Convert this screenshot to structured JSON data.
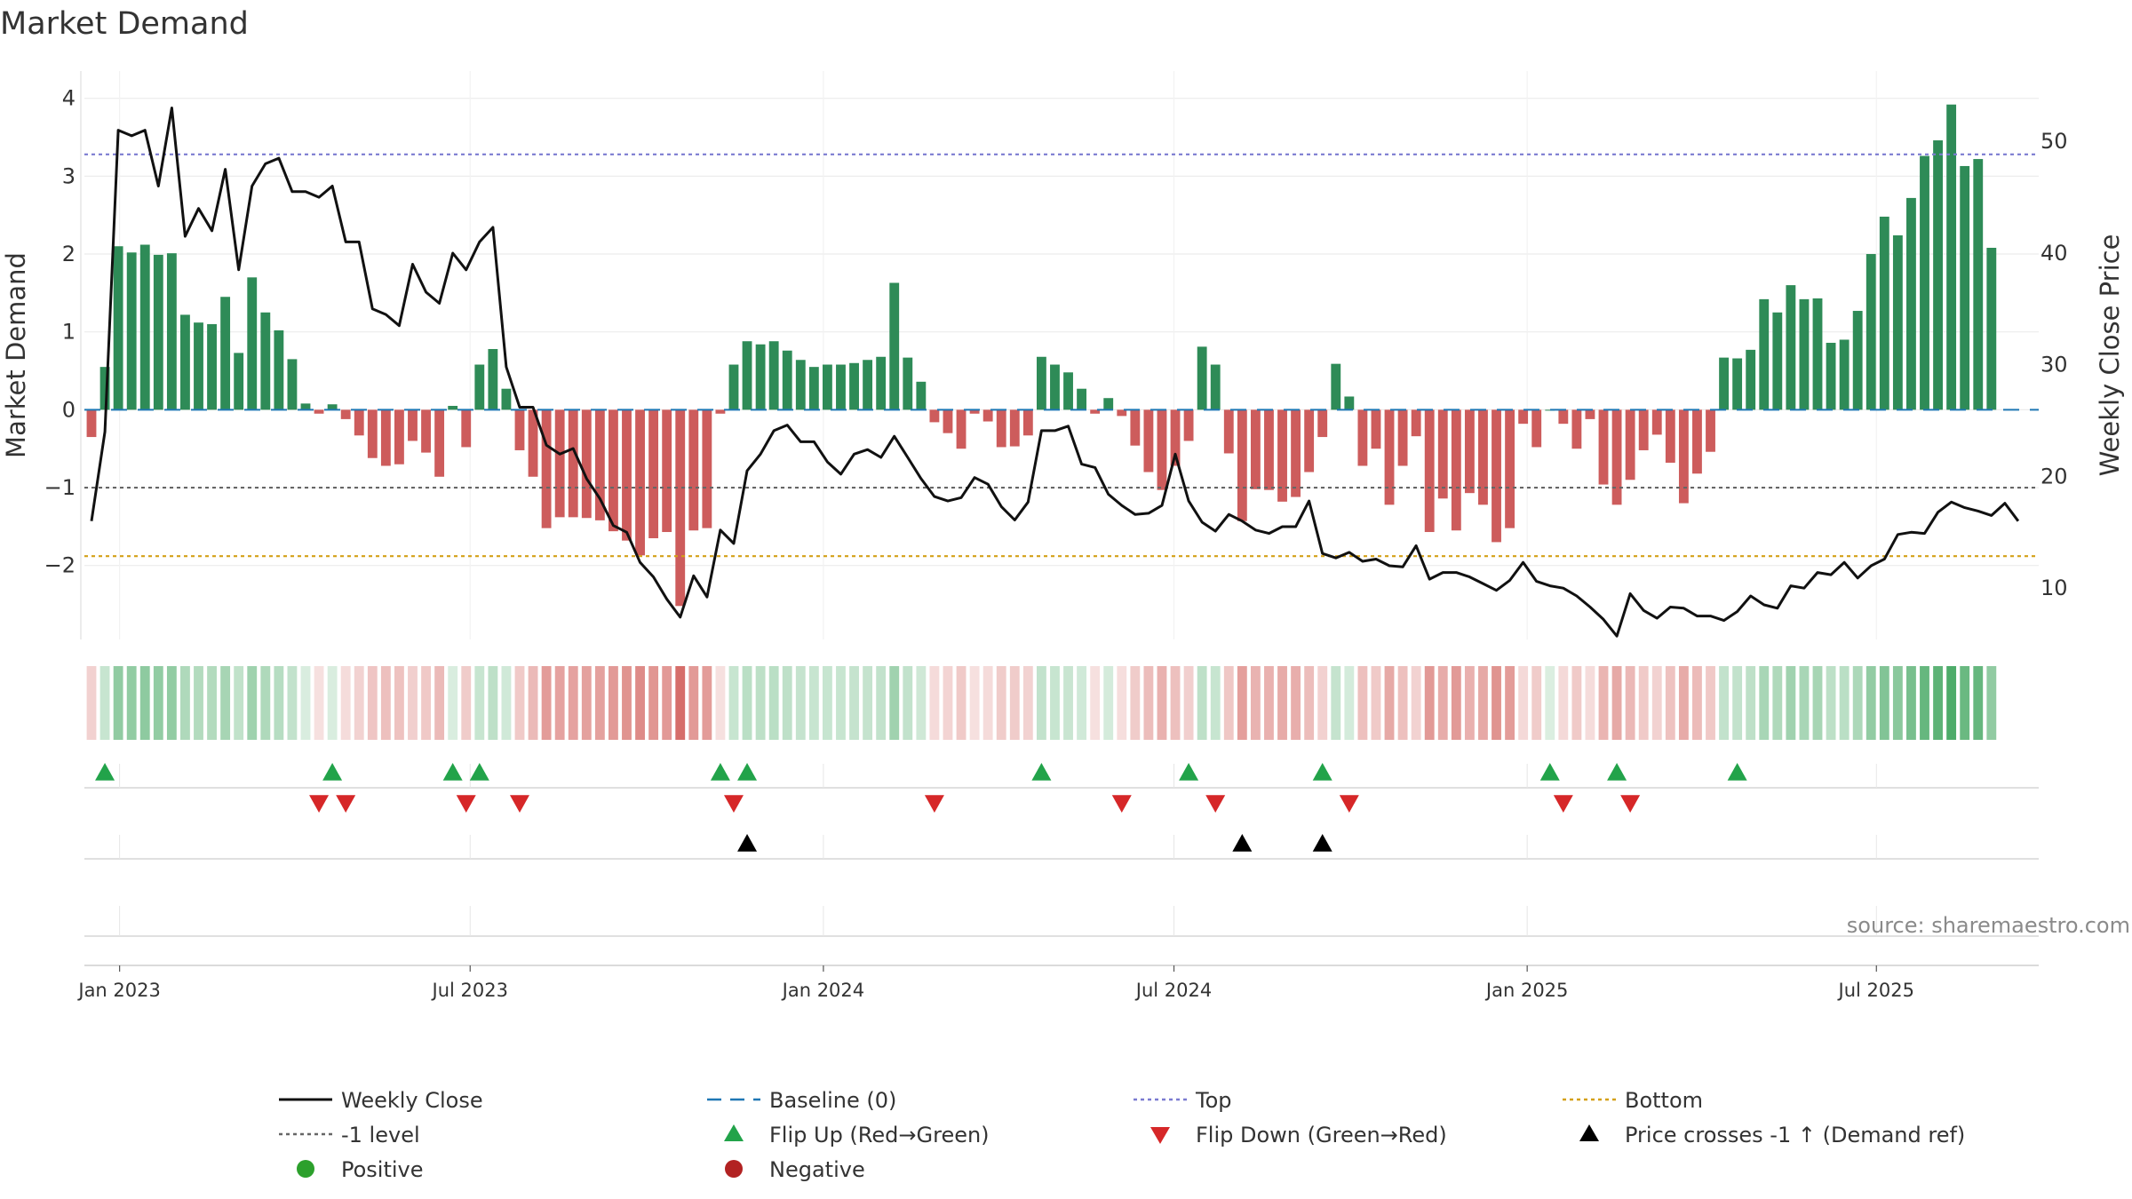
{
  "chart_data": {
    "type": "bar",
    "title": "Market Demand",
    "ylabel": "Market Demand",
    "y2label": "Weekly Close Price",
    "ylim": [
      -2.95,
      4.35
    ],
    "y2lim": [
      5.4,
      56.3
    ],
    "yticks": [
      4,
      3,
      2,
      1,
      0,
      -1,
      -2
    ],
    "yticklabels": [
      "4",
      "3",
      "2",
      "1",
      "0",
      "−1",
      "−2"
    ],
    "y2ticks": [
      50,
      40,
      30,
      20,
      10
    ],
    "y2ticklabels": [
      "50",
      "40",
      "30",
      "20",
      "10"
    ],
    "weeks_from_start": [
      0,
      145
    ],
    "xticks": [
      {
        "label": "Jan 2023",
        "week": 2.1
      },
      {
        "label": "Jul 2023",
        "week": 28.3
      },
      {
        "label": "Jan 2024",
        "week": 54.7
      },
      {
        "label": "Jul 2024",
        "week": 80.9
      },
      {
        "label": "Jan 2025",
        "week": 107.3
      },
      {
        "label": "Jul 2025",
        "week": 133.4
      }
    ],
    "levels": {
      "top": 3.28,
      "minus_one": -1.0,
      "bottom": -1.88,
      "baseline": 0
    },
    "colors": {
      "positive": "#2e8b57",
      "negative": "#cd5c5c",
      "close": "#111111",
      "baseline": "#1f77b4",
      "top": "#7b7bd1",
      "minus_one": "#666666",
      "bottom": "#d4a017",
      "flip_up": "#22a34a",
      "flip_down": "#d62728",
      "cross": "#000000",
      "strip_pos": "#36a055",
      "strip_neg": "#d05a55"
    },
    "demand": [
      -0.35,
      0.55,
      2.1,
      2.02,
      2.12,
      1.99,
      2.01,
      1.22,
      1.12,
      1.1,
      1.45,
      0.73,
      1.7,
      1.25,
      1.02,
      0.65,
      0.08,
      -0.05,
      0.07,
      -0.12,
      -0.33,
      -0.62,
      -0.72,
      -0.7,
      -0.4,
      -0.55,
      -0.86,
      0.05,
      -0.48,
      0.58,
      0.78,
      0.27,
      -0.52,
      -0.86,
      -1.52,
      -1.38,
      -1.38,
      -1.39,
      -1.42,
      -1.56,
      -1.68,
      -1.87,
      -1.65,
      -1.57,
      -2.52,
      -1.55,
      -1.52,
      -0.05,
      0.58,
      0.88,
      0.84,
      0.88,
      0.76,
      0.64,
      0.55,
      0.58,
      0.58,
      0.6,
      0.64,
      0.68,
      1.63,
      0.67,
      0.36,
      -0.16,
      -0.3,
      -0.5,
      -0.05,
      -0.15,
      -0.48,
      -0.47,
      -0.33,
      0.68,
      0.58,
      0.48,
      0.27,
      -0.05,
      0.15,
      -0.08,
      -0.46,
      -0.8,
      -1.03,
      -0.72,
      -0.4,
      0.81,
      0.58,
      -0.56,
      -1.43,
      -1.02,
      -1.03,
      -1.18,
      -1.12,
      -0.8,
      -0.35,
      0.59,
      0.17,
      -0.72,
      -0.5,
      -1.22,
      -0.72,
      -0.34,
      -1.57,
      -1.14,
      -1.55,
      -1.07,
      -1.22,
      -1.7,
      -1.52,
      -0.18,
      -0.48,
      0.0,
      -0.18,
      -0.5,
      -0.12,
      -0.96,
      -1.22,
      -0.9,
      -0.52,
      -0.32,
      -0.68,
      -1.2,
      -0.82,
      -0.54,
      0.67,
      0.66,
      0.77,
      1.42,
      1.25,
      1.6,
      1.42,
      1.43,
      0.86,
      0.9,
      1.27,
      2.0,
      2.48,
      2.24,
      2.72,
      3.26,
      3.46,
      3.92,
      3.13,
      3.22,
      2.08
    ],
    "close": [
      16,
      24,
      51,
      50.5,
      51,
      46,
      53,
      41.5,
      44,
      42,
      47.5,
      38.5,
      46,
      48,
      48.5,
      45.5,
      45.5,
      45,
      46,
      41,
      41,
      35,
      34.5,
      33.5,
      39,
      36.5,
      35.5,
      40,
      38.5,
      41,
      42.3,
      29.8,
      26.2,
      26.2,
      22.8,
      22.0,
      22.5,
      19.8,
      18.0,
      15.6,
      15.0,
      12.3,
      11.0,
      9.0,
      7.4,
      11.1,
      9.2,
      15.2,
      14.0,
      20.5,
      22.0,
      24.1,
      24.6,
      23.1,
      23.1,
      21.3,
      20.2,
      22.0,
      22.4,
      21.7,
      23.6,
      21.7,
      19.8,
      18.2,
      17.8,
      18.1,
      19.9,
      19.3,
      17.3,
      16.1,
      17.7,
      24.1,
      24.1,
      24.5,
      21.1,
      20.8,
      18.4,
      17.4,
      16.6,
      16.7,
      17.4,
      22.0,
      17.8,
      15.9,
      15.1,
      16.6,
      16.0,
      15.2,
      14.9,
      15.5,
      15.5,
      17.8,
      13.1,
      12.7,
      13.2,
      12.4,
      12.6,
      12.0,
      11.9,
      13.8,
      10.8,
      11.4,
      11.4,
      11.0,
      10.4,
      9.8,
      10.7,
      12.3,
      10.6,
      10.2,
      10.0,
      9.3,
      8.3,
      7.2,
      5.7,
      9.5,
      8.0,
      7.3,
      8.3,
      8.2,
      7.5,
      7.5,
      7.1,
      7.9,
      9.3,
      8.5,
      8.2,
      10.2,
      10.0,
      11.4,
      11.2,
      12.3,
      10.9,
      12.0,
      12.6,
      14.8,
      15.0,
      14.9,
      16.8,
      17.7,
      17.2,
      16.9,
      16.5,
      17.6,
      16.0
    ],
    "flip_up_weeks": [
      1,
      18,
      27,
      29,
      47,
      49,
      71,
      82,
      92,
      109,
      114,
      123
    ],
    "flip_down_weeks": [
      17,
      19,
      28,
      32,
      48,
      63,
      77,
      84,
      94,
      110,
      115
    ],
    "cross_weeks": [
      49,
      86,
      92
    ],
    "source": "source: sharemaestro.com",
    "legend": [
      {
        "key": "close",
        "label": "Weekly Close"
      },
      {
        "key": "baseline",
        "label": "Baseline (0)"
      },
      {
        "key": "top",
        "label": "Top"
      },
      {
        "key": "bottom",
        "label": "Bottom"
      },
      {
        "key": "minus_one",
        "label": "-1 level"
      },
      {
        "key": "flip_up",
        "label": "Flip Up (Red→Green)"
      },
      {
        "key": "flip_down",
        "label": "Flip Down (Green→Red)"
      },
      {
        "key": "cross",
        "label": "Price crosses -1 ↑ (Demand ref)"
      },
      {
        "key": "positive",
        "label": "Positive"
      },
      {
        "key": "negative",
        "label": "Negative"
      }
    ]
  }
}
